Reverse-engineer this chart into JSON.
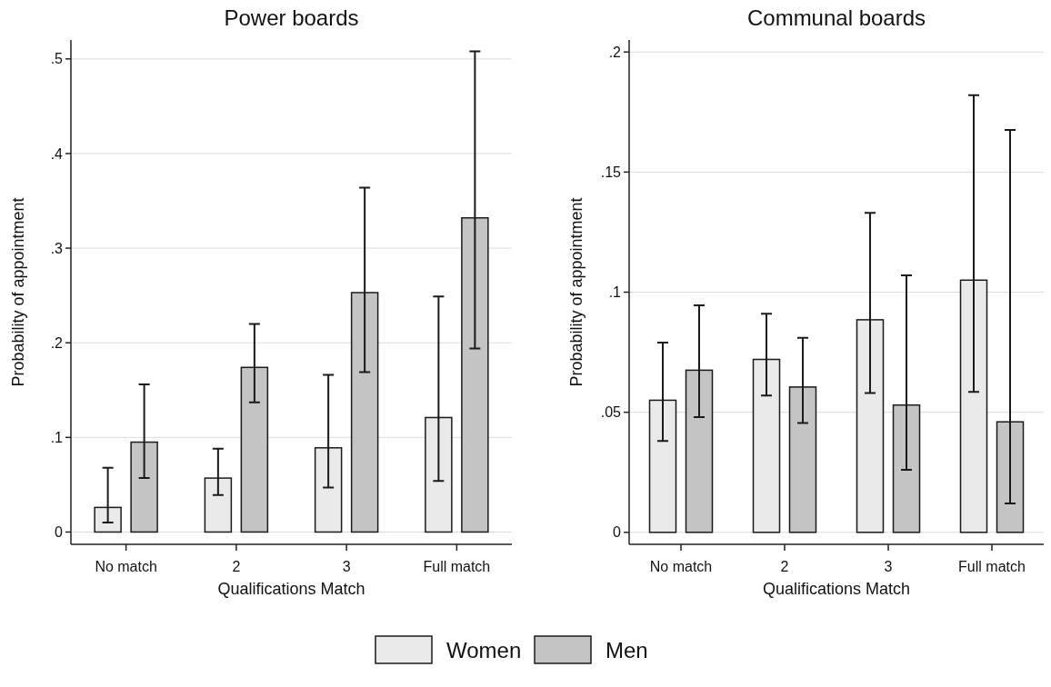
{
  "chart_data": [
    {
      "type": "bar",
      "title": "Power boards",
      "xlabel": "Qualifications Match",
      "ylabel": "Probability of appointment",
      "categories": [
        "No match",
        "2",
        "3",
        "Full match"
      ],
      "series": [
        {
          "name": "Women",
          "color": "#eaeaea",
          "values": [
            0.026,
            0.057,
            0.089,
            0.121
          ],
          "errors": [
            [
              0.01,
              0.068
            ],
            [
              0.039,
              0.088
            ],
            [
              0.047,
              0.166
            ],
            [
              0.054,
              0.249
            ]
          ]
        },
        {
          "name": "Men",
          "color": "#c4c4c4",
          "values": [
            0.095,
            0.174,
            0.253,
            0.332
          ],
          "errors": [
            [
              0.057,
              0.156
            ],
            [
              0.137,
              0.22
            ],
            [
              0.169,
              0.364
            ],
            [
              0.194,
              0.508
            ]
          ]
        }
      ],
      "ylim": [
        -0.013,
        0.52
      ],
      "yticks": [
        {
          "value": 0,
          "label": "0"
        },
        {
          "value": 0.1,
          "label": ".1"
        },
        {
          "value": 0.2,
          "label": ".2"
        },
        {
          "value": 0.3,
          "label": ".3"
        },
        {
          "value": 0.4,
          "label": ".4"
        },
        {
          "value": 0.5,
          "label": ".5"
        }
      ],
      "grid": "y",
      "legend": "bottom"
    },
    {
      "type": "bar",
      "title": "Communal boards",
      "xlabel": "Qualifications Match",
      "ylabel": "Probability of appointment",
      "categories": [
        "No match",
        "2",
        "3",
        "Full match"
      ],
      "series": [
        {
          "color": "#eaeaea",
          "values": [
            0.055,
            0.072,
            0.0885,
            0.105
          ],
          "errors": [
            [
              0.038,
              0.079
            ],
            [
              0.057,
              0.091
            ],
            [
              0.058,
              0.133
            ],
            [
              0.0585,
              0.182
            ]
          ]
        },
        {
          "color": "#c4c4c4",
          "values": [
            0.0675,
            0.0605,
            0.053,
            0.046
          ],
          "errors": [
            [
              0.048,
              0.0945
            ],
            [
              0.0455,
              0.081
            ],
            [
              0.026,
              0.107
            ],
            [
              0.012,
              0.1675
            ]
          ]
        }
      ],
      "ylim": [
        -0.005,
        0.205
      ],
      "yticks": [
        {
          "value": 0,
          "label": "0"
        },
        {
          "value": 0.05,
          "label": ".05"
        },
        {
          "value": 0.1,
          "label": ".1"
        },
        {
          "value": 0.15,
          "label": ".15"
        },
        {
          "value": 0.2,
          "label": ".2"
        }
      ],
      "grid": "y"
    }
  ]
}
